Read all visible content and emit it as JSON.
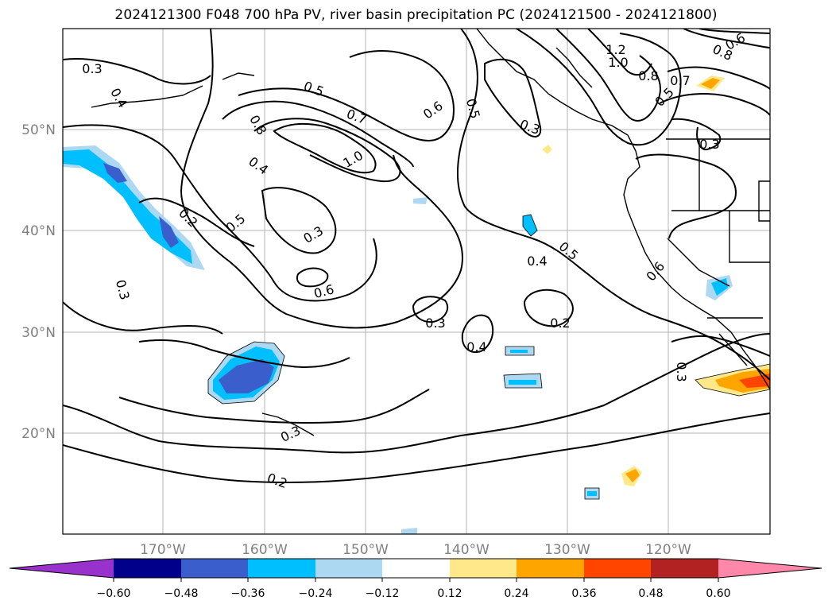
{
  "title": "2024121300 F048 700 hPa PV, river basin precipitation PC (2024121500 - 2024121800)",
  "map": {
    "lat_labels": [
      "50°N",
      "40°N",
      "30°N",
      "20°N"
    ],
    "lon_labels": [
      "170°W",
      "160°W",
      "150°W",
      "140°W",
      "130°W",
      "120°W"
    ],
    "contour_labels": [
      "0.3",
      "0.4",
      "0.5",
      "0.7",
      "1.0",
      "0.8",
      "0.6",
      "0.5",
      "0.3",
      "1.2",
      "1.0",
      "0.8",
      "0.7",
      "0.5",
      "0.3",
      "0.8",
      "0.6",
      "0.4",
      "0.2",
      "0.5",
      "0.3",
      "0.6",
      "0.3",
      "0.4",
      "0.2",
      "0.4",
      "0.5",
      "0.6",
      "0.3",
      "0.3",
      "0.2",
      "0.3"
    ]
  },
  "colorbar": {
    "ticks": [
      "−0.60",
      "−0.48",
      "−0.36",
      "−0.24",
      "−0.12",
      "0.12",
      "0.24",
      "0.36",
      "0.48",
      "0.60"
    ],
    "colors": [
      "#9932cc",
      "#00008b",
      "#3a5fcd",
      "#00bfff",
      "#add8f2",
      "#ffffff",
      "#ffe88a",
      "#ffa500",
      "#ff4500",
      "#b22222",
      "#ff88aa"
    ]
  }
}
